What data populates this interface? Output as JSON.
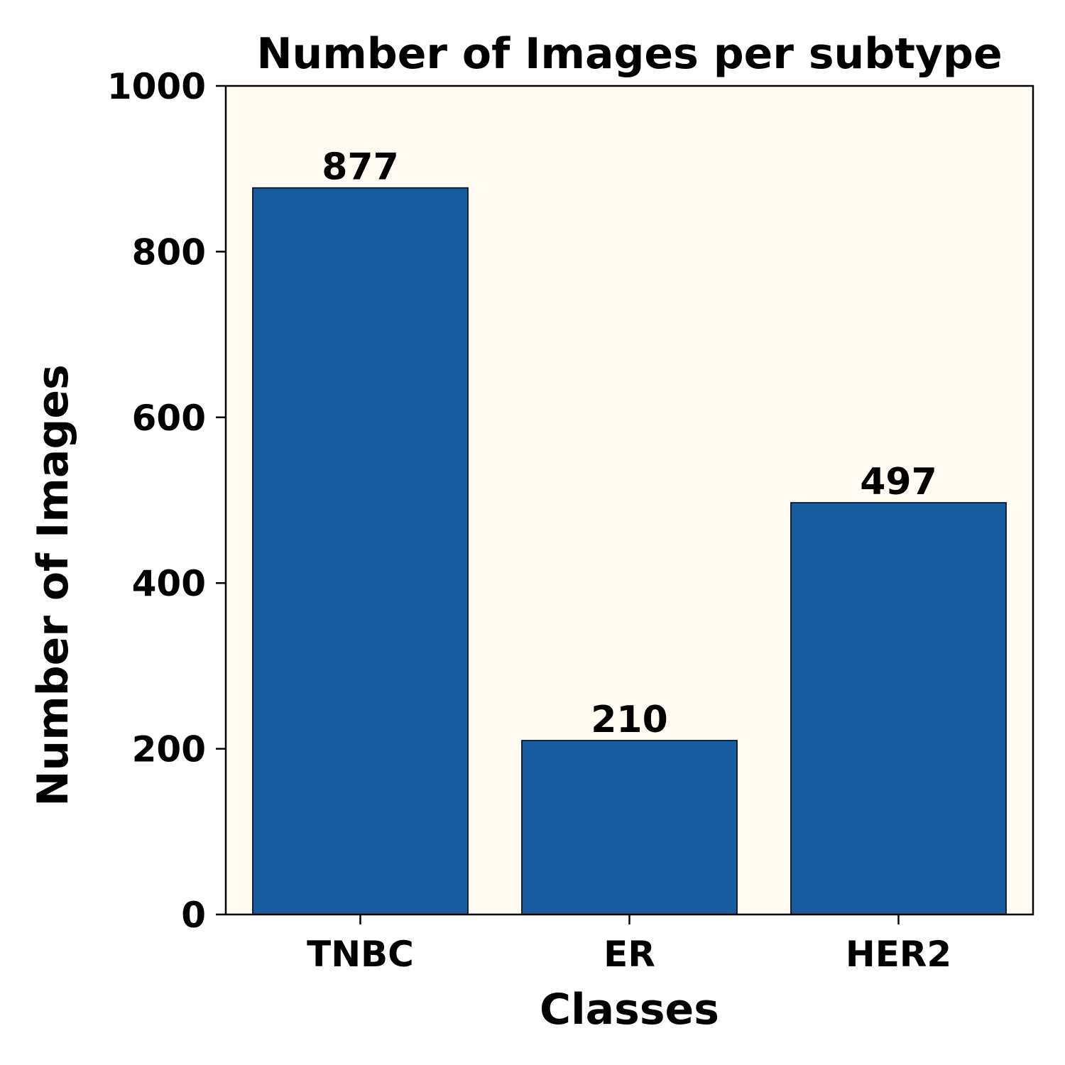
{
  "chart_data": {
    "type": "bar",
    "title": "Number of Images per subtype",
    "xlabel": "Classes",
    "ylabel": "Number of Images",
    "categories": [
      "TNBC",
      "ER",
      "HER2"
    ],
    "values": [
      877,
      210,
      497
    ],
    "data_labels": [
      "877",
      "210",
      "497"
    ],
    "ylim": [
      0,
      1000
    ],
    "yticks": [
      0,
      200,
      400,
      600,
      800,
      1000
    ],
    "ytick_labels": [
      "0",
      "200",
      "400",
      "600",
      "800",
      "1000"
    ],
    "grid": false,
    "legend": "none",
    "colors": {
      "bar": "#175d9f",
      "bar_edge": "#000000",
      "plot_background": "#fffbf3",
      "axis": "#000000"
    }
  }
}
